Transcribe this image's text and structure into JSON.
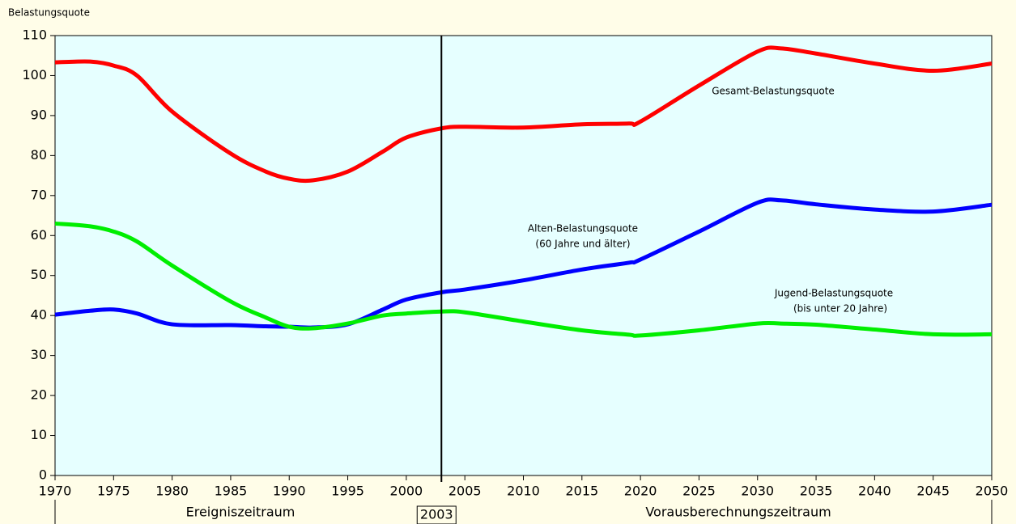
{
  "chart_data": {
    "type": "line",
    "y_label": "Belastungsquote",
    "x": [
      1970,
      1973,
      1975,
      1977,
      1980,
      1985,
      1988,
      1990,
      1992,
      1995,
      1998,
      2000,
      2003,
      2005,
      2010,
      2015,
      2019,
      2020,
      2025,
      2030,
      2032,
      2035,
      2040,
      2045,
      2050
    ],
    "series": [
      {
        "name": "Gesamt-Belastungsquote",
        "color": "#ff0000",
        "values": [
          103.3,
          103.5,
          102.5,
          100,
          91,
          80.5,
          76,
          74.2,
          73.8,
          76,
          81,
          84.5,
          86.8,
          87.2,
          87,
          87.8,
          88,
          88.5,
          97.5,
          106,
          106.8,
          105.5,
          103,
          101.2,
          103
        ]
      },
      {
        "name": "Alten-Belastungsquote",
        "color": "#0000ff",
        "values": [
          40.2,
          41.2,
          41.5,
          40.5,
          37.8,
          37.6,
          37.3,
          37.2,
          37,
          37.8,
          41.5,
          44,
          45.8,
          46.5,
          48.8,
          51.5,
          53.2,
          54,
          61,
          68.2,
          68.8,
          67.8,
          66.5,
          66,
          67.7
        ]
      },
      {
        "name": "Jugend-Belastungsquote",
        "color": "#00ee00",
        "values": [
          63,
          62.3,
          61,
          58.5,
          52.5,
          43.5,
          39.5,
          37.2,
          36.8,
          38,
          40,
          40.5,
          41,
          40.8,
          38.5,
          36.3,
          35.2,
          35,
          36.3,
          38,
          38,
          37.7,
          36.5,
          35.3,
          35.3
        ]
      }
    ],
    "series_notes": [
      "(60 Jahre und älter)",
      "(bis unter 20 Jahre)"
    ],
    "divider": {
      "x": 2003
    },
    "periods": [
      "Ereigniszeitraum",
      "Vorausberechnungszeitraum"
    ],
    "xlim": [
      1970,
      2050
    ],
    "xticks": [
      1970,
      1975,
      1980,
      1985,
      1990,
      1995,
      2000,
      2005,
      2010,
      2015,
      2020,
      2025,
      2030,
      2035,
      2040,
      2045,
      2050
    ],
    "ylim": [
      0,
      110
    ],
    "yticks": [
      0,
      10,
      20,
      30,
      40,
      50,
      60,
      70,
      80,
      90,
      100,
      110
    ]
  }
}
